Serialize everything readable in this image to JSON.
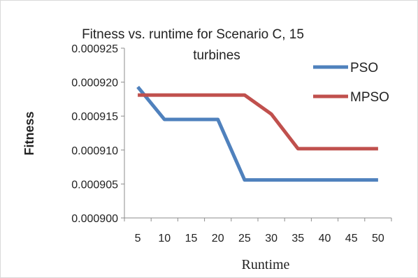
{
  "chart_data": {
    "type": "line",
    "title_lines": [
      "Fitness vs. runtime for Scenario C, 15",
      "turbines"
    ],
    "xlabel": "Runtime",
    "ylabel": "Fitness",
    "x": [
      5,
      10,
      15,
      20,
      25,
      30,
      35,
      40,
      45,
      50
    ],
    "x_tick_labels": [
      "5",
      "10",
      "15",
      "20",
      "25",
      "30",
      "35",
      "40",
      "45",
      "50"
    ],
    "ylim": [
      0.0009,
      0.000925
    ],
    "y_ticks": [
      0.0009,
      0.000905,
      0.00091,
      0.000915,
      0.00092,
      0.000925
    ],
    "y_tick_labels": [
      "0.000900",
      "0.000905",
      "0.000910",
      "0.000915",
      "0.000920",
      "0.000925"
    ],
    "grid": false,
    "legend_position": "top-right",
    "series": [
      {
        "name": "PSO",
        "color": "#4f81bd",
        "values": [
          0.0009193,
          0.0009145,
          0.0009145,
          0.0009145,
          0.0009056,
          0.0009056,
          0.0009056,
          0.0009056,
          0.0009056,
          0.0009056
        ]
      },
      {
        "name": "MPSO",
        "color": "#c0504d",
        "values": [
          0.0009181,
          0.0009181,
          0.0009181,
          0.0009181,
          0.0009181,
          0.0009153,
          0.0009102,
          0.0009102,
          0.0009102,
          0.0009102
        ]
      }
    ]
  }
}
